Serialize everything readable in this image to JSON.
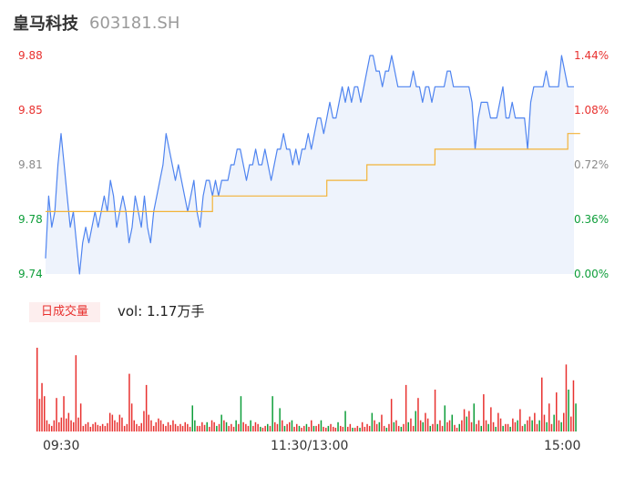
{
  "header": {
    "name": "皇马科技",
    "code": "603181.SH"
  },
  "colors": {
    "up": "#e8312f",
    "down": "#0e9e3a",
    "flat": "#8a8a8a",
    "price_line": "#4f84f0",
    "avg_line": "#f2b338"
  },
  "chart_data": {
    "type": "line",
    "series": [
      {
        "values": [
          9.75,
          9.79,
          9.77,
          9.78,
          9.81,
          9.83,
          9.81,
          9.79,
          9.77,
          9.78,
          9.76,
          9.74,
          9.76,
          9.77,
          9.76,
          9.77,
          9.78,
          9.77,
          9.78,
          9.79,
          9.78,
          9.8,
          9.79,
          9.77,
          9.78,
          9.79,
          9.78,
          9.76,
          9.77,
          9.79,
          9.78,
          9.77,
          9.79,
          9.77,
          9.76,
          9.78,
          9.79,
          9.8,
          9.81,
          9.83,
          9.82,
          9.81,
          9.8,
          9.81,
          9.8,
          9.79,
          9.78,
          9.79,
          9.8,
          9.78,
          9.77,
          9.79,
          9.8,
          9.8,
          9.79,
          9.8,
          9.79,
          9.8,
          9.8,
          9.8,
          9.81,
          9.81,
          9.82,
          9.82,
          9.81,
          9.8,
          9.81,
          9.81,
          9.82,
          9.81,
          9.81,
          9.82,
          9.81,
          9.8,
          9.81,
          9.82,
          9.82,
          9.83,
          9.82,
          9.82,
          9.81,
          9.82,
          9.81,
          9.82,
          9.82,
          9.83,
          9.82,
          9.83,
          9.84,
          9.84,
          9.83,
          9.84,
          9.85,
          9.84,
          9.84,
          9.85,
          9.86,
          9.85,
          9.86,
          9.85,
          9.86,
          9.86,
          9.85,
          9.86,
          9.87,
          9.88,
          9.88,
          9.87,
          9.87,
          9.86,
          9.87,
          9.87,
          9.88,
          9.87,
          9.86,
          9.86,
          9.86,
          9.86,
          9.86,
          9.87,
          9.86,
          9.86,
          9.85,
          9.86,
          9.86,
          9.85,
          9.86,
          9.86,
          9.86,
          9.86,
          9.87,
          9.87,
          9.86,
          9.86,
          9.86,
          9.86,
          9.86,
          9.86,
          9.85,
          9.82,
          9.84,
          9.85,
          9.85,
          9.85,
          9.84,
          9.84,
          9.84,
          9.85,
          9.86,
          9.84,
          9.84,
          9.85,
          9.84,
          9.84,
          9.84,
          9.84,
          9.82,
          9.85,
          9.86,
          9.86,
          9.86,
          9.86,
          9.87,
          9.86,
          9.86,
          9.86,
          9.86,
          9.88,
          9.87,
          9.86,
          9.86,
          9.86
        ],
        "vs": [
          9.78,
          9.78,
          9.78,
          9.78,
          9.78,
          9.78,
          9.78,
          9.78,
          9.78,
          9.78,
          9.78,
          9.78,
          9.78,
          9.78,
          9.78,
          9.78,
          9.78,
          9.78,
          9.78,
          9.78,
          9.78,
          9.78,
          9.78,
          9.78,
          9.78,
          9.78,
          9.78,
          9.78,
          9.78,
          9.78,
          9.78,
          9.78,
          9.78,
          9.78,
          9.78,
          9.78,
          9.78,
          9.78,
          9.78,
          9.78,
          9.78,
          9.78,
          9.78,
          9.78,
          9.78,
          9.78,
          9.78,
          9.78,
          9.78,
          9.78,
          9.78,
          9.78,
          9.78,
          9.78,
          9.79,
          9.79,
          9.79,
          9.79,
          9.79,
          9.79,
          9.79,
          9.79,
          9.79,
          9.79,
          9.79,
          9.79,
          9.79,
          9.79,
          9.79,
          9.79,
          9.79,
          9.79,
          9.79,
          9.79,
          9.79,
          9.79,
          9.79,
          9.79,
          9.79,
          9.79,
          9.79,
          9.79,
          9.79,
          9.79,
          9.79,
          9.79,
          9.79,
          9.79,
          9.79,
          9.79,
          9.79,
          9.8,
          9.8,
          9.8,
          9.8,
          9.8,
          9.8,
          9.8,
          9.8,
          9.8,
          9.8,
          9.8,
          9.8,
          9.8,
          9.81,
          9.81,
          9.81,
          9.81,
          9.81,
          9.81,
          9.81,
          9.81,
          9.81,
          9.81,
          9.81,
          9.81,
          9.81,
          9.81,
          9.81,
          9.81,
          9.81,
          9.81,
          9.81,
          9.81,
          9.81,
          9.81,
          9.82,
          9.82,
          9.82,
          9.82,
          9.82,
          9.82,
          9.82,
          9.82,
          9.82,
          9.82,
          9.82,
          9.82,
          9.82,
          9.82,
          9.82,
          9.82,
          9.82,
          9.82,
          9.82,
          9.82,
          9.82,
          9.82,
          9.82,
          9.82,
          9.82,
          9.82,
          9.82,
          9.82,
          9.82,
          9.82,
          9.82,
          9.82,
          9.82,
          9.82,
          9.82,
          9.82,
          9.82,
          9.82,
          9.82,
          9.82,
          9.82,
          9.82,
          9.82,
          9.83,
          9.83,
          9.83,
          9.83,
          9.83
        ]
      }
    ],
    "ylim": [
      9.74,
      9.88
    ],
    "y_ticks_left": [
      "9.88",
      "9.85",
      "9.81",
      "9.78",
      "9.74"
    ],
    "y_ticks_right": [
      "1.44%",
      "1.08%",
      "0.72%",
      "0.36%",
      "0.00%"
    ],
    "volume": {
      "label": "日成交量",
      "summary": "vol: 1.17万手",
      "values": [
        90,
        35,
        52,
        38,
        12,
        8,
        6,
        12,
        36,
        10,
        15,
        38,
        14,
        20,
        12,
        10,
        82,
        15,
        30,
        6,
        8,
        10,
        5,
        8,
        10,
        7,
        6,
        8,
        6,
        9,
        20,
        18,
        12,
        10,
        18,
        15,
        6,
        8,
        62,
        30,
        12,
        8,
        6,
        9,
        22,
        50,
        18,
        12,
        6,
        10,
        14,
        12,
        8,
        6,
        10,
        7,
        12,
        8,
        6,
        8,
        6,
        10,
        8,
        5,
        28,
        12,
        6,
        6,
        10,
        7,
        10,
        5,
        12,
        10,
        6,
        8,
        18,
        12,
        10,
        6,
        8,
        5,
        12,
        8,
        38,
        10,
        8,
        6,
        12,
        6,
        10,
        8,
        5,
        4,
        6,
        8,
        6,
        38,
        10,
        8,
        25,
        12,
        6,
        8,
        10,
        12,
        5,
        8,
        6,
        4,
        6,
        8,
        5,
        12,
        6,
        6,
        8,
        12,
        5,
        4,
        6,
        8,
        5,
        4,
        10,
        6,
        5,
        22,
        5,
        8,
        4,
        4,
        6,
        4,
        10,
        5,
        8,
        6,
        20,
        12,
        8,
        10,
        18,
        6,
        4,
        8,
        35,
        10,
        12,
        6,
        5,
        8,
        50,
        10,
        14,
        6,
        22,
        36,
        12,
        10,
        20,
        14,
        6,
        8,
        45,
        8,
        12,
        6,
        28,
        10,
        12,
        18,
        7,
        4,
        8,
        12,
        24,
        16,
        22,
        10,
        30,
        8,
        12,
        6,
        40,
        12,
        8,
        26,
        10,
        5,
        20,
        14,
        6,
        8,
        8,
        5,
        14,
        10,
        12,
        24,
        6,
        8,
        12,
        16,
        12,
        20,
        8,
        12,
        58,
        18,
        10,
        30,
        8,
        18,
        42,
        12,
        10,
        20,
        72,
        45,
        16,
        55,
        30
      ],
      "up": [
        true,
        true,
        true,
        true,
        true,
        true,
        true,
        true,
        true,
        true,
        true,
        true,
        true,
        true,
        true,
        true,
        true,
        true,
        true,
        true,
        true,
        true,
        true,
        true,
        true,
        true,
        true,
        true,
        true,
        true,
        true,
        true,
        true,
        true,
        true,
        true,
        true,
        true,
        true,
        true,
        true,
        true,
        true,
        true,
        true,
        true,
        true,
        true,
        true,
        true,
        true,
        true,
        true,
        true,
        true,
        true,
        true,
        true,
        true,
        true,
        true,
        true,
        true,
        true,
        false,
        false,
        true,
        true,
        true,
        true,
        false,
        true,
        true,
        true,
        false,
        true,
        false,
        true,
        false,
        true,
        true,
        true,
        false,
        true,
        false,
        true,
        true,
        true,
        false,
        true,
        true,
        true,
        false,
        true,
        true,
        false,
        true,
        false,
        true,
        true,
        false,
        true,
        false,
        true,
        true,
        false,
        true,
        true,
        false,
        true,
        true,
        false,
        true,
        true,
        false,
        true,
        true,
        false,
        true,
        true,
        false,
        true,
        true,
        true,
        false,
        true,
        true,
        false,
        true,
        true,
        false,
        true,
        true,
        false,
        true,
        true,
        true,
        true,
        false,
        true,
        true,
        false,
        true,
        true,
        false,
        true,
        true,
        false,
        true,
        true,
        false,
        true,
        true,
        false,
        true,
        true,
        false,
        true,
        true,
        false,
        true,
        true,
        false,
        true,
        true,
        false,
        true,
        true,
        false,
        true,
        true,
        false,
        true,
        true,
        false,
        true,
        true,
        false,
        true,
        true,
        false,
        true,
        true,
        false,
        true,
        true,
        false,
        true,
        true,
        false,
        true,
        true,
        false,
        true,
        true,
        false,
        true,
        true,
        false,
        true,
        true,
        false,
        true,
        true,
        false,
        true,
        true,
        false,
        true,
        true,
        false,
        true,
        true,
        false,
        true,
        true,
        false,
        true,
        true,
        false,
        true,
        true,
        false,
        true,
        true,
        false,
        true,
        true,
        false,
        true,
        true,
        false
      ]
    },
    "x_ticks": [
      "09:30",
      "11:30/13:00",
      "15:00"
    ]
  }
}
